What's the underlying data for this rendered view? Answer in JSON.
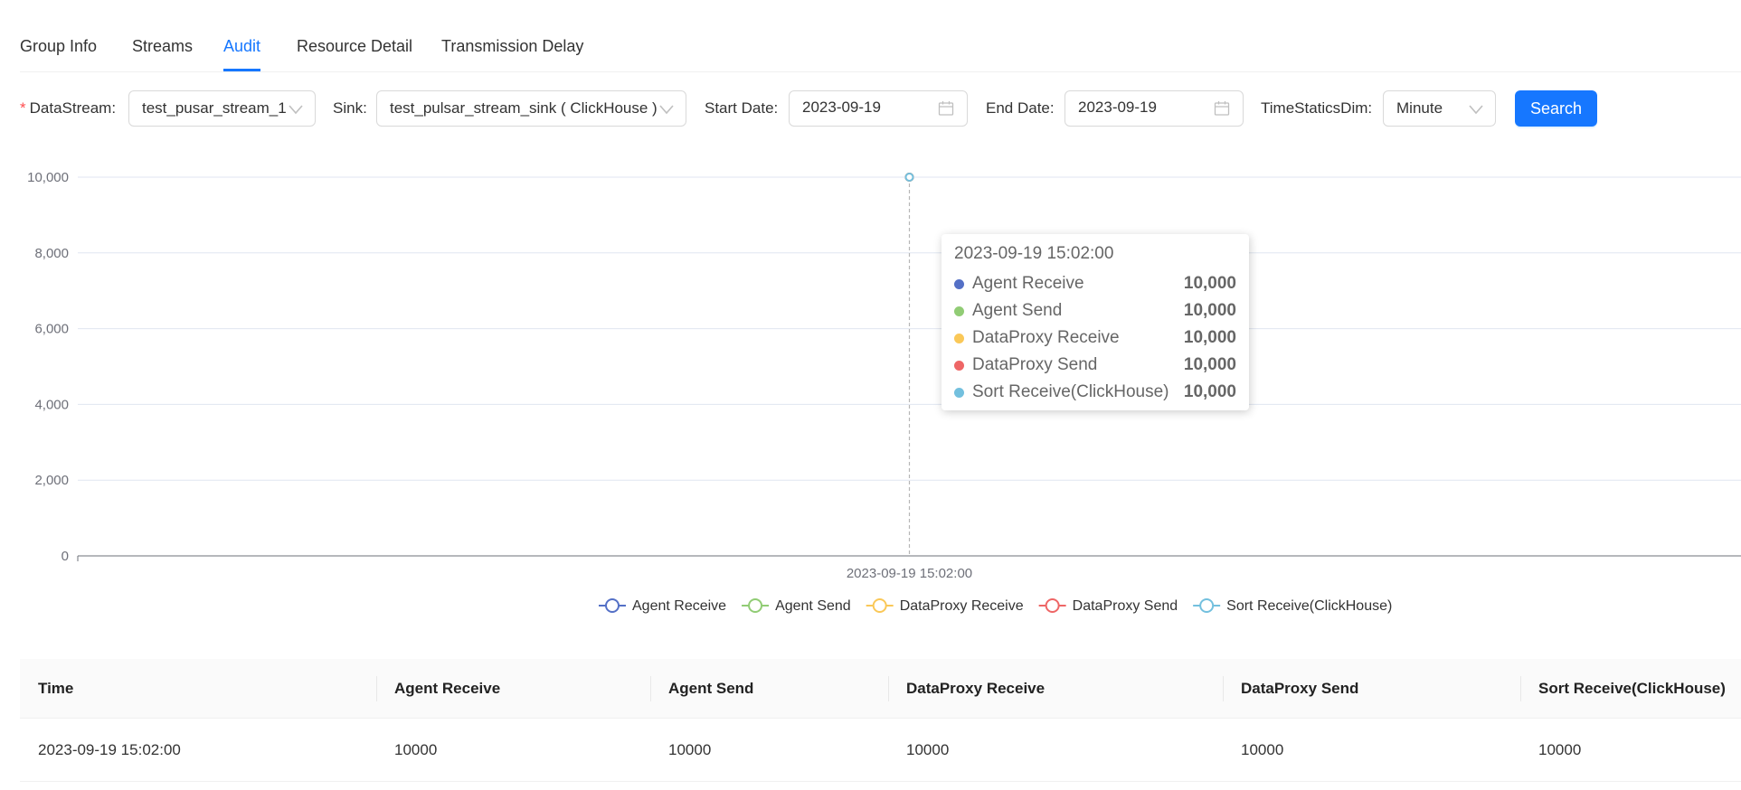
{
  "tabs": [
    {
      "label": "Group Info",
      "active": false
    },
    {
      "label": "Streams",
      "active": false
    },
    {
      "label": "Audit",
      "active": true
    },
    {
      "label": "Resource Detail",
      "active": false
    },
    {
      "label": "Transmission Delay",
      "active": false
    }
  ],
  "filters": {
    "required_mark": "*",
    "datastream_label": "DataStream",
    "datastream_value": "test_pusar_stream_1",
    "sink_label": "Sink",
    "sink_value": "test_pulsar_stream_sink ( ClickHouse )",
    "start_date_label": "Start Date",
    "start_date_value": "2023-09-19",
    "end_date_label": "End Date",
    "end_date_value": "2023-09-19",
    "dim_label": "TimeStaticsDim",
    "dim_value": "Minute",
    "colon": ":",
    "search_label": "Search"
  },
  "chart_data": {
    "type": "line",
    "x": [
      "2023-09-19 15:02:00"
    ],
    "ylim": [
      0,
      10000
    ],
    "yticks": [
      "0",
      "2,000",
      "4,000",
      "6,000",
      "8,000",
      "10,000"
    ],
    "grid": true,
    "legend_position": "bottom",
    "series": [
      {
        "name": "Agent Receive",
        "values": [
          10000
        ],
        "color": "#5470c6"
      },
      {
        "name": "Agent Send",
        "values": [
          10000
        ],
        "color": "#91cc75"
      },
      {
        "name": "DataProxy Receive",
        "values": [
          10000
        ],
        "color": "#fac858"
      },
      {
        "name": "DataProxy Send",
        "values": [
          10000
        ],
        "color": "#ee6666"
      },
      {
        "name": "Sort Receive(ClickHouse)",
        "values": [
          10000
        ],
        "color": "#73c0de"
      }
    ]
  },
  "tooltip": {
    "title": "2023-09-19 15:02:00",
    "rows": [
      {
        "name": "Agent Receive",
        "value": "10,000",
        "color": "#5470c6"
      },
      {
        "name": "Agent Send",
        "value": "10,000",
        "color": "#91cc75"
      },
      {
        "name": "DataProxy Receive",
        "value": "10,000",
        "color": "#fac858"
      },
      {
        "name": "DataProxy Send",
        "value": "10,000",
        "color": "#ee6666"
      },
      {
        "name": "Sort Receive(ClickHouse)",
        "value": "10,000",
        "color": "#73c0de"
      }
    ]
  },
  "table": {
    "columns": [
      "Time",
      "Agent Receive",
      "Agent Send",
      "DataProxy Receive",
      "DataProxy Send",
      "Sort Receive(ClickHouse)"
    ],
    "rows": [
      [
        "2023-09-19 15:02:00",
        "10000",
        "10000",
        "10000",
        "10000",
        "10000"
      ]
    ]
  },
  "colors": {
    "accent": "#1677ff",
    "required": "#ff4d4f"
  }
}
